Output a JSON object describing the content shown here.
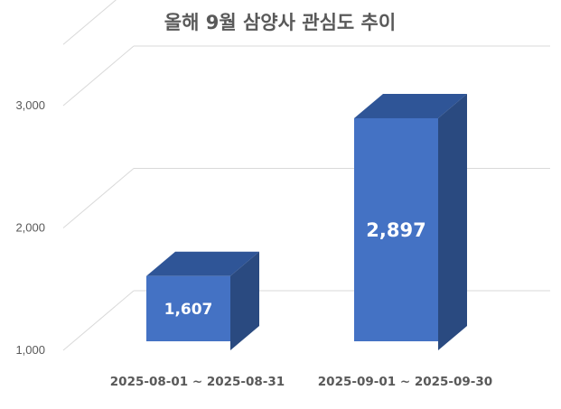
{
  "chart_data": {
    "type": "bar",
    "title": "올해 9월 삼양사 관심도 추이",
    "categories": [
      "2025-08-01 ~ 2025-08-31",
      "2025-09-01 ~ 2025-09-30"
    ],
    "values": [
      1607,
      2897
    ],
    "value_labels": [
      "1,607",
      "2,897"
    ],
    "yticks": [
      "1,000",
      "2,000",
      "3,000"
    ],
    "ylim": [
      1000,
      3500
    ],
    "grid": true,
    "style": "3d-column",
    "colors": {
      "front": "#4472C4",
      "top": "#2F5597",
      "side": "#2A4A80",
      "grid": "#D9D9D9",
      "text": "#595959"
    }
  }
}
